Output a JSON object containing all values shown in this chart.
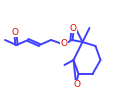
{
  "bg_color": "#ffffff",
  "line_color": "#4040ff",
  "atom_color": "#dd0000",
  "lw": 1.4,
  "fig_width": 1.33,
  "fig_height": 1.0,
  "dpi": 100,
  "xlim": [
    0,
    133
  ],
  "ylim": [
    0,
    100
  ]
}
